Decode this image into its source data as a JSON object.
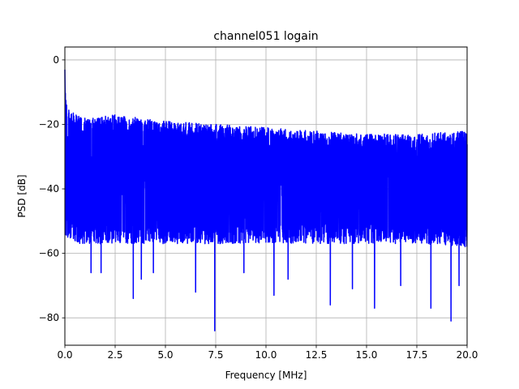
{
  "chart_data": {
    "type": "line",
    "title": "channel051 logain",
    "xlabel": "Frequency [MHz]",
    "ylabel": "PSD [dB]",
    "xlim": [
      0,
      20
    ],
    "ylim": [
      -88.5,
      4
    ],
    "x_ticks": [
      0,
      2.5,
      5,
      7.5,
      10,
      12.5,
      15,
      17.5,
      20
    ],
    "x_tick_labels": [
      "0.0",
      "2.5",
      "5.0",
      "7.5",
      "10.0",
      "12.5",
      "15.0",
      "17.5",
      "20.0"
    ],
    "y_ticks": [
      0,
      -20,
      -40,
      -60,
      -80
    ],
    "y_tick_labels": [
      "0",
      "−20",
      "−40",
      "−60",
      "−80"
    ],
    "grid": true,
    "series": [
      {
        "color": "#0000ff",
        "description_points": {
          "x": [
            0.0,
            0.05,
            0.1,
            0.2,
            0.5,
            1.0,
            2.5,
            5.0,
            7.5,
            10.0,
            12.5,
            15.0,
            17.5,
            20.0
          ],
          "upper_envelope_db": [
            -3,
            -12,
            -14,
            -15,
            -17,
            -18,
            -17,
            -19,
            -20,
            -21,
            -22,
            -23,
            -23,
            -22
          ],
          "lower_envelope_db": [
            -58,
            -58,
            -55,
            -55,
            -57,
            -57,
            -57,
            -57,
            -57,
            -57,
            -57,
            -57,
            -57,
            -58
          ]
        },
        "notable_dips": [
          {
            "x": 1.3,
            "y": -66
          },
          {
            "x": 1.8,
            "y": -66
          },
          {
            "x": 3.4,
            "y": -74
          },
          {
            "x": 3.8,
            "y": -68
          },
          {
            "x": 4.4,
            "y": -66
          },
          {
            "x": 6.5,
            "y": -72
          },
          {
            "x": 7.45,
            "y": -84
          },
          {
            "x": 8.9,
            "y": -66
          },
          {
            "x": 10.4,
            "y": -73
          },
          {
            "x": 11.1,
            "y": -68
          },
          {
            "x": 13.2,
            "y": -76
          },
          {
            "x": 14.3,
            "y": -71
          },
          {
            "x": 15.4,
            "y": -77
          },
          {
            "x": 16.7,
            "y": -70
          },
          {
            "x": 18.2,
            "y": -77
          },
          {
            "x": 19.2,
            "y": -81
          },
          {
            "x": 19.6,
            "y": -70
          }
        ]
      }
    ]
  }
}
